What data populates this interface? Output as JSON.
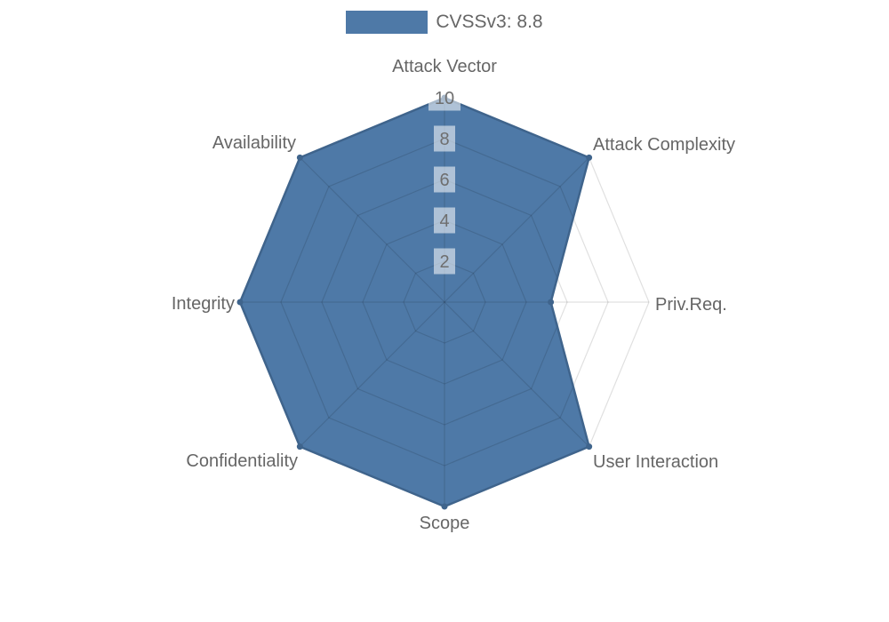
{
  "chart_data": {
    "type": "radar",
    "title": "",
    "legend": {
      "position": "top",
      "label": "CVSSv3: 8.8"
    },
    "categories": [
      "Attack Vector",
      "Attack Complexity",
      "Priv.Req.",
      "User Interaction",
      "Scope",
      "Confidentiality",
      "Integrity",
      "Availability"
    ],
    "series": [
      {
        "name": "CVSSv3: 8.8",
        "values": [
          10,
          10,
          5.2,
          10,
          10,
          10,
          10,
          10
        ]
      }
    ],
    "scale": {
      "min": 0,
      "max": 10,
      "step": 2,
      "tick_labels": [
        "2",
        "4",
        "6",
        "8",
        "10"
      ]
    },
    "grid": {
      "visible": true,
      "shape": "polygon",
      "rings": 5
    },
    "colors": {
      "fill": "#4e79a7",
      "border": "#3f648c",
      "point": "#3f648c",
      "grid_line": "rgba(0,0,0,0.12)",
      "tick_text": "#6e6e6e",
      "tick_backdrop": "rgba(255,255,255,0.55)",
      "axis_label_text": "#666666",
      "legend_text": "#666666"
    }
  }
}
